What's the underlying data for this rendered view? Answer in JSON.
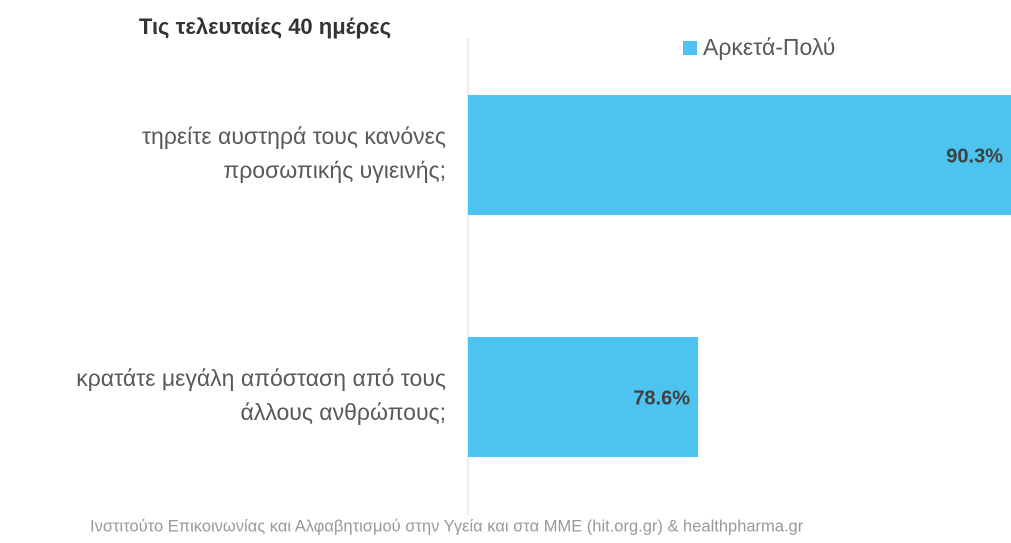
{
  "chart_data": {
    "type": "barh",
    "title": "Τις τελευταίες 40 ημέρες",
    "categories": [
      [
        "τηρείτε αυστηρά τους κανόνες",
        "προσωπικής υγιεινής;"
      ],
      [
        "κρατάτε μεγάλη απόσταση από τους",
        "άλλους ανθρώπους;"
      ]
    ],
    "series": [
      {
        "name": "Αρκετά-Πολύ",
        "color": "#4dc3f0",
        "values": [
          90.3,
          78.6
        ],
        "value_labels": [
          "90.3%",
          "78.6%"
        ]
      }
    ],
    "xlim": [
      70,
      90.3
    ],
    "source": "Ινστιτούτο Επικοινωνίας και Αλφαβητισμού στην Υγεία και στα ΜΜΕ (hit.org.gr) & healthpharma.gr"
  }
}
